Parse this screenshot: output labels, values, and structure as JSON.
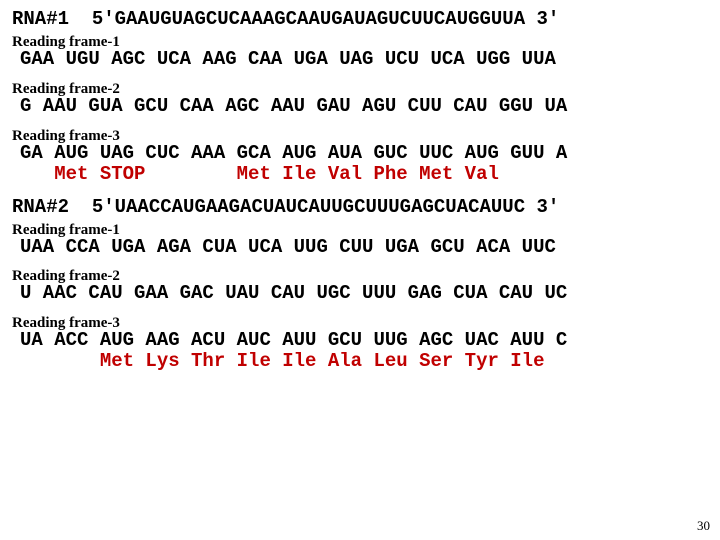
{
  "rna1": {
    "label": "RNA#1",
    "sequence": "5'GAAUGUAGCUCAAAGCAAUGAUAGUCUUCAUGGUUA 3'"
  },
  "rna1_frames": [
    {
      "title": "Reading frame-1",
      "codons": "GAA UGU AGC UCA AAG CAA UGA UAG UCU UCA UGG UUA",
      "amino": null
    },
    {
      "title": "Reading frame-2",
      "codons": "G AAU GUA GCU CAA AGC AAU GAU AGU CUU CAU GGU UA",
      "amino": null
    },
    {
      "title": "Reading frame-3",
      "codons": "GA AUG UAG CUC AAA GCA AUG AUA GUC UUC AUG GUU A",
      "amino": "   Met STOP        Met Ile Val Phe Met Val"
    }
  ],
  "rna2": {
    "label": "RNA#2",
    "sequence": "5'UAACCAUGAAGACUAUCAUUGCUUUGAGCUACAUUC 3'"
  },
  "rna2_frames": [
    {
      "title": "Reading frame-1",
      "codons": "UAA CCA UGA AGA CUA UCA UUG CUU UGA GCU ACA UUC",
      "amino": null
    },
    {
      "title": "Reading frame-2",
      "codons": "U AAC CAU GAA GAC UAU CAU UGC UUU GAG CUA CAU UC",
      "amino": null
    },
    {
      "title": "Reading frame-3",
      "codons": "UA ACC AUG AAG ACU AUC AUU GCU UUG AGC UAC AUU C",
      "amino": "       Met Lys Thr Ile Ile Ala Leu Ser Tyr Ile"
    }
  ],
  "page": "30"
}
